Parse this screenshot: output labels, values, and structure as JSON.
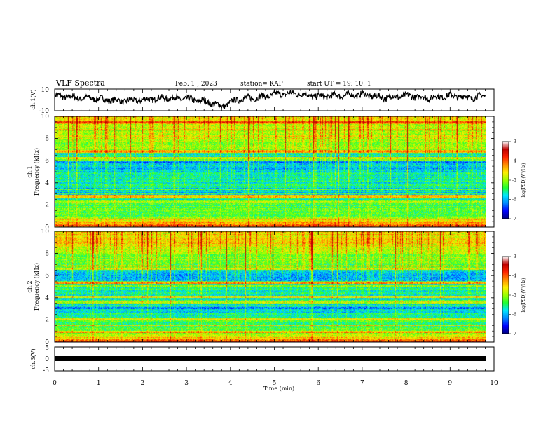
{
  "header": {
    "title": "VLF Spectra",
    "date": "Feb. 1  , 2023",
    "station": "station= KAP",
    "start_ut": "start  UT  =   19: 10: 1"
  },
  "colors": {
    "colormap": [
      "#00007f",
      "#0000ff",
      "#0088ff",
      "#00e5ff",
      "#21ff33",
      "#9bff00",
      "#ffee00",
      "#ff8a00",
      "#ff2200",
      "#bf0000",
      "#ffffff"
    ],
    "waveform": "#000000"
  },
  "chart_data": [
    {
      "type": "line",
      "panel": "ch1-waveform",
      "ylabel": "ch.1(V)",
      "ylim": [
        -10,
        10
      ],
      "yticks": [
        "10",
        "-10"
      ],
      "x": [
        0.0,
        0.5,
        1.0,
        1.5,
        2.0,
        2.5,
        3.0,
        3.5,
        3.8,
        4.2,
        4.6,
        5.0,
        5.5,
        6.0,
        6.5,
        7.0,
        7.5,
        8.0,
        8.5,
        9.0,
        9.5,
        9.8
      ],
      "values": [
        4,
        2,
        1,
        -1,
        0,
        2,
        1,
        -2,
        -6,
        1,
        2,
        5,
        6,
        3,
        4,
        5,
        2,
        4,
        2,
        4,
        2,
        4
      ]
    },
    {
      "type": "heatmap",
      "panel": "ch1-spectrogram",
      "ylabel": "ch.1\nFrequency  (kHz)",
      "ylim": [
        0,
        10
      ],
      "yticks": [
        "0",
        "2",
        "4",
        "6",
        "8",
        "10"
      ],
      "colorbar": {
        "label": "log(PSD)(V²/Hz)",
        "ticks": [
          "-3",
          "-4",
          "-5",
          "-6",
          "-7"
        ],
        "range": [
          -7,
          -3
        ]
      },
      "rows_khz": [
        10,
        9,
        8,
        7,
        6,
        5,
        4,
        3,
        2,
        1,
        0
      ],
      "log_psd_profile": [
        -4.4,
        -4.5,
        -4.6,
        -5.0,
        -6.1,
        -5.6,
        -5.5,
        -5.8,
        -5.2,
        -5.0,
        -3.6
      ]
    },
    {
      "type": "heatmap",
      "panel": "ch2-spectrogram",
      "ylabel": "ch.2\nFrequency  (kHz)",
      "ylim": [
        0,
        10
      ],
      "yticks": [
        "0",
        "2",
        "4",
        "6",
        "8",
        "10"
      ],
      "colorbar": {
        "label": "log(PSD)(V²/Hz)",
        "ticks": [
          "-3",
          "-4",
          "-5",
          "-6",
          "-7"
        ],
        "range": [
          -7,
          -3
        ]
      },
      "rows_khz": [
        10,
        9,
        8,
        7,
        6,
        5,
        4,
        3,
        2,
        1,
        0
      ],
      "log_psd_profile": [
        -4.3,
        -4.3,
        -4.8,
        -5.0,
        -6.0,
        -5.4,
        -5.6,
        -5.9,
        -5.2,
        -5.2,
        -3.8
      ]
    },
    {
      "type": "line",
      "panel": "ch3-waveform",
      "ylabel": "ch.3(V)",
      "ylim": [
        -5,
        5
      ],
      "yticks": [
        "5",
        "0",
        "-5"
      ],
      "x": [
        0.0,
        9.8
      ],
      "values": [
        0,
        0
      ]
    }
  ],
  "xaxis": {
    "label": "Time  (min)",
    "ticks": [
      "0",
      "1",
      "2",
      "3",
      "4",
      "5",
      "6",
      "7",
      "8",
      "9",
      "10"
    ],
    "range": [
      0,
      10
    ]
  }
}
